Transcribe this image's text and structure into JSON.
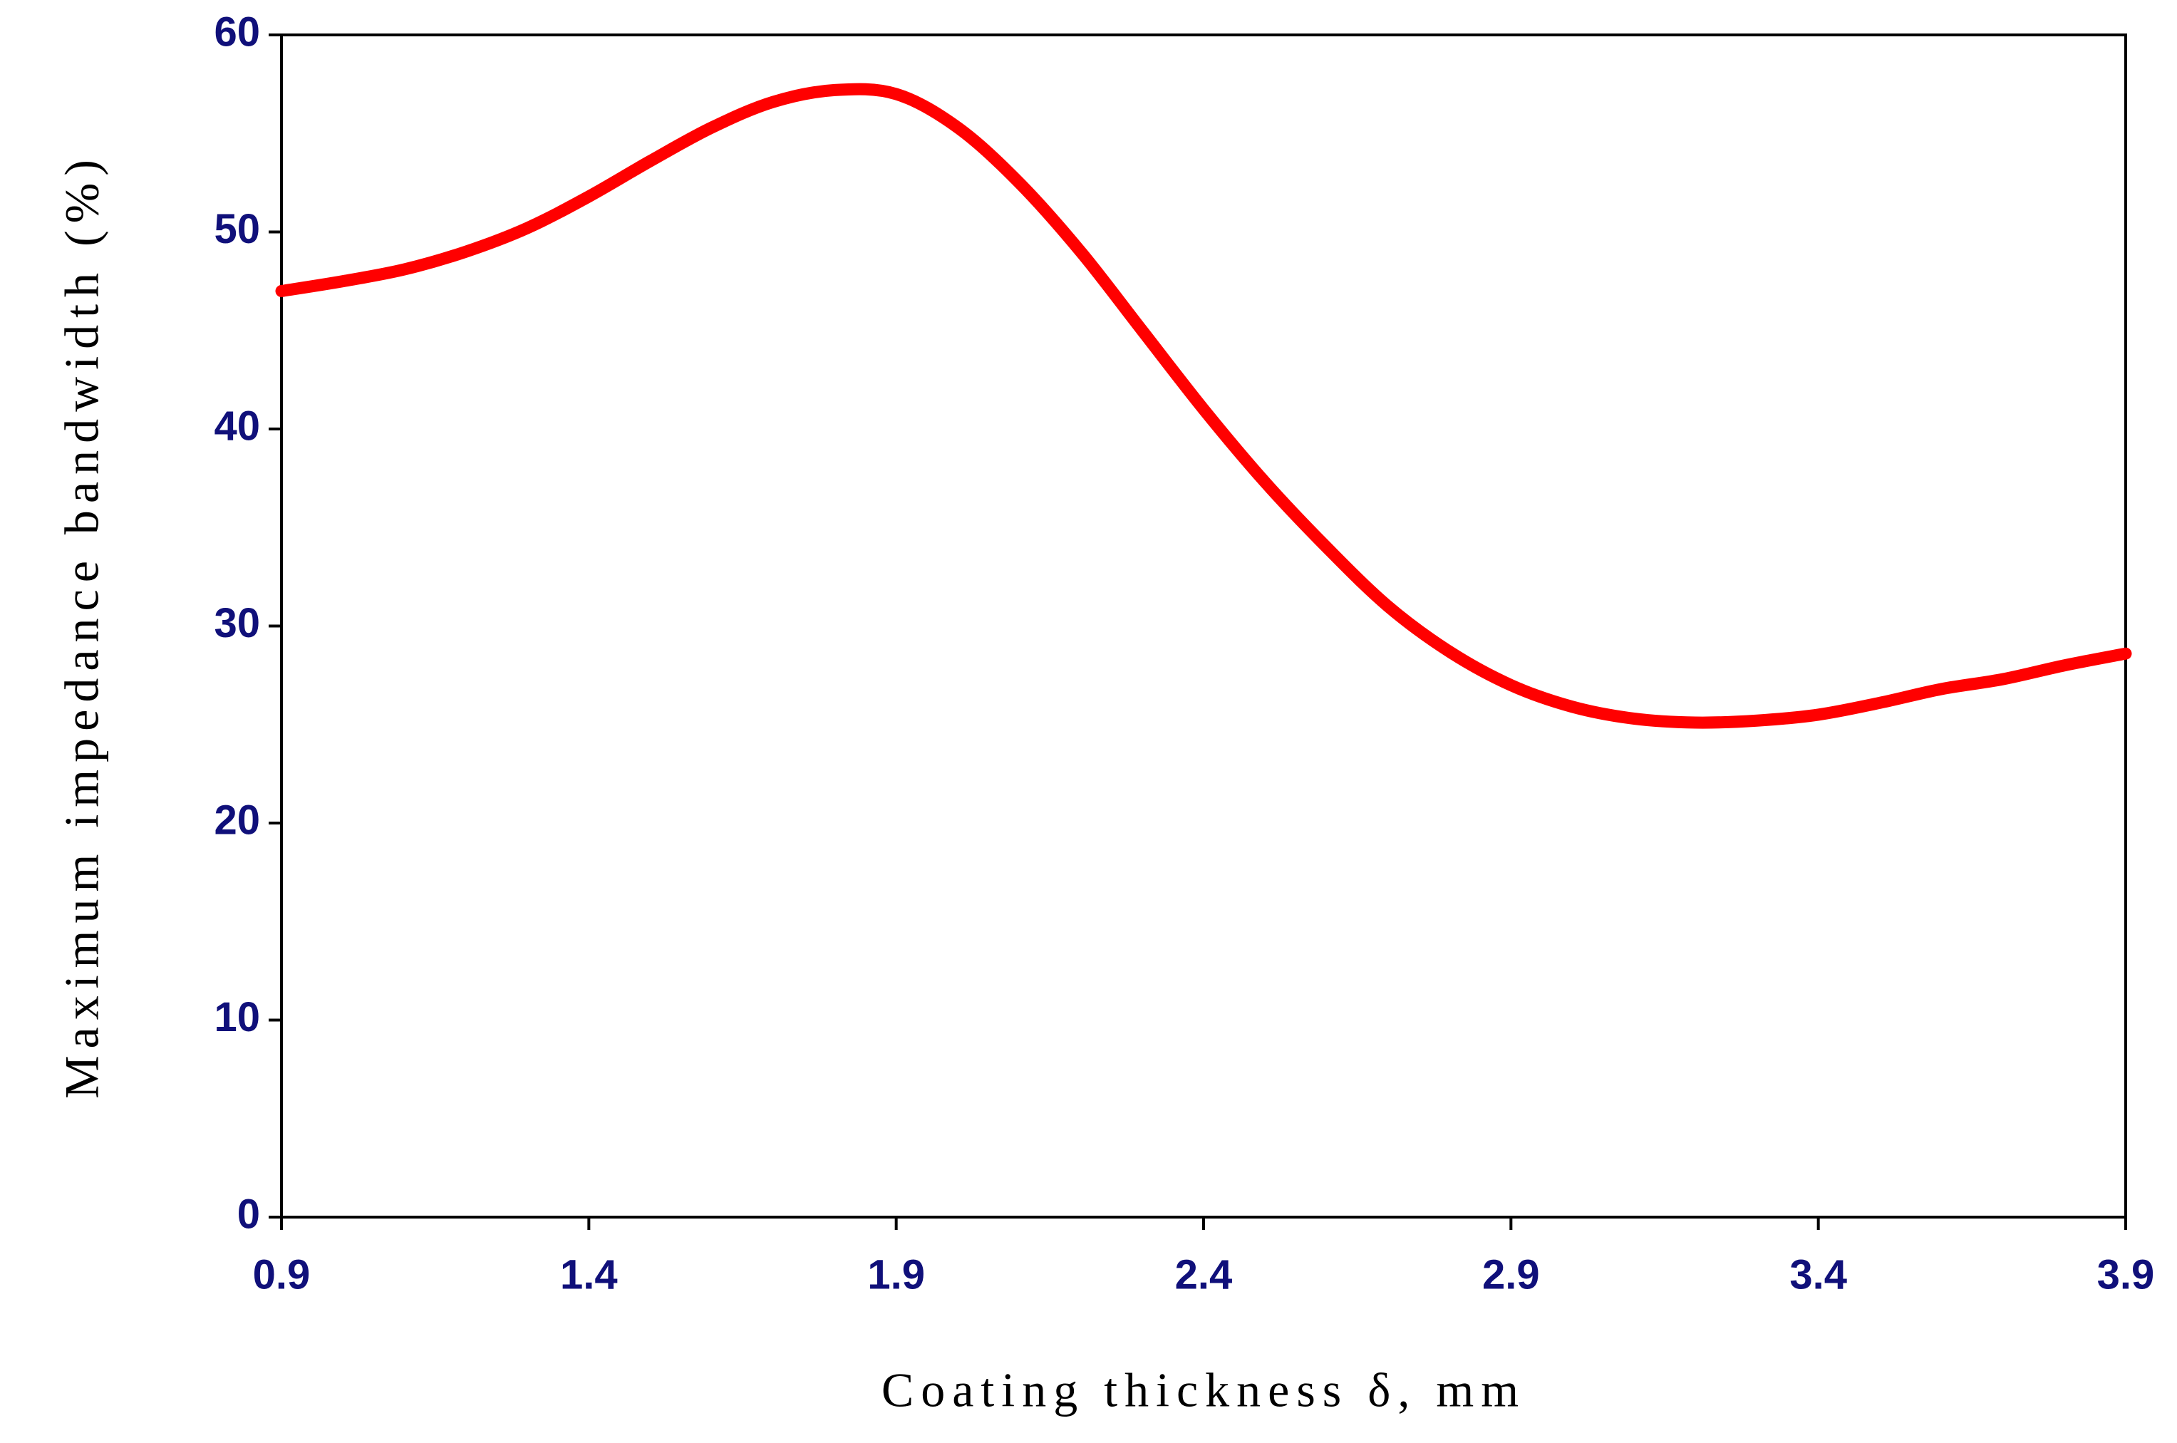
{
  "chart_data": {
    "type": "line",
    "x_label": "Coating thickness δ, mm",
    "y_label": "Maximum impedance bandwidth (%)",
    "x": [
      0.9,
      1.0,
      1.1,
      1.2,
      1.3,
      1.4,
      1.5,
      1.6,
      1.7,
      1.8,
      1.9,
      2.0,
      2.1,
      2.2,
      2.3,
      2.4,
      2.5,
      2.6,
      2.7,
      2.8,
      2.9,
      3.0,
      3.1,
      3.2,
      3.3,
      3.4,
      3.5,
      3.6,
      3.7,
      3.8,
      3.9
    ],
    "series": [
      {
        "color": "#ff0000",
        "values": [
          47.0,
          47.5,
          48.1,
          49.0,
          50.2,
          51.8,
          53.6,
          55.3,
          56.6,
          57.2,
          57.0,
          55.3,
          52.5,
          49.0,
          45.0,
          41.0,
          37.3,
          34.0,
          31.0,
          28.7,
          27.0,
          25.9,
          25.3,
          25.1,
          25.2,
          25.5,
          26.1,
          26.8,
          27.3,
          28.0,
          28.6
        ]
      }
    ],
    "xlim": [
      0.9,
      3.9
    ],
    "xticks": [
      0.9,
      1.4,
      1.9,
      2.4,
      2.9,
      3.4,
      3.9
    ],
    "ylim": [
      0,
      60
    ],
    "yticks": [
      0,
      10,
      20,
      30,
      40,
      50,
      60
    ]
  }
}
